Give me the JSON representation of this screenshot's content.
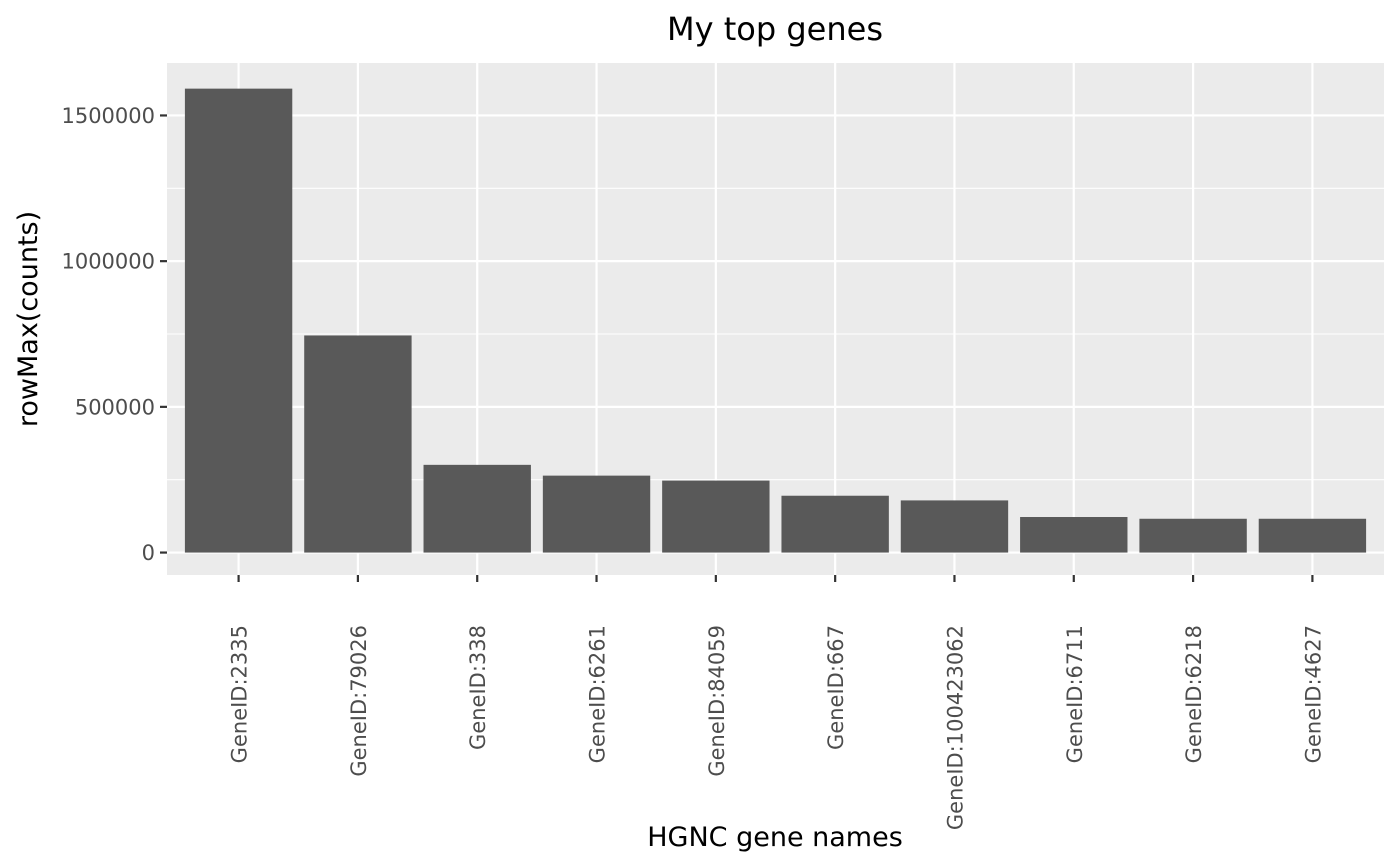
{
  "chart_data": {
    "type": "bar",
    "title": "My top genes",
    "xlabel": "HGNC gene names",
    "ylabel": "rowMax(counts)",
    "categories": [
      "GeneID:2335",
      "GeneID:79026",
      "GeneID:338",
      "GeneID:6261",
      "GeneID:84059",
      "GeneID:667",
      "GeneID:100423062",
      "GeneID:6711",
      "GeneID:6218",
      "GeneID:4627"
    ],
    "values": [
      1592000,
      745000,
      301000,
      264000,
      247000,
      195000,
      179000,
      122000,
      116000,
      116000
    ],
    "ylim": [
      -77000,
      1680000
    ],
    "yticks": [
      0,
      500000,
      1000000,
      1500000
    ],
    "ytick_labels": [
      "0",
      "500000",
      "1000000",
      "1500000"
    ],
    "grid": true,
    "bar_color": "#595959",
    "panel_color": "#ebebeb"
  }
}
